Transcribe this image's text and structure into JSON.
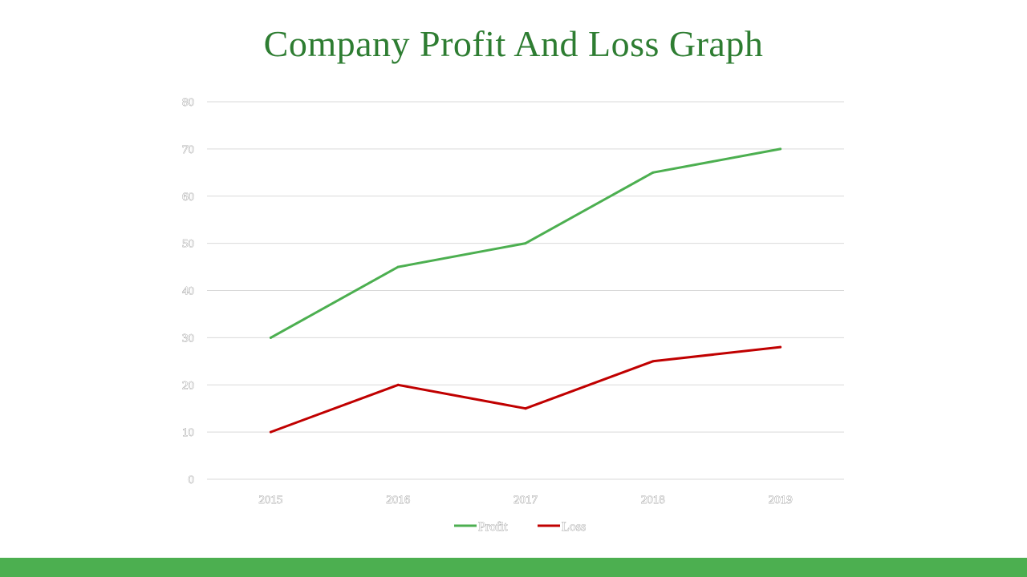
{
  "slide": {
    "title": "Company Profit And Loss Graph",
    "bottom_bar_color": "#4caf50",
    "title_color": "#2e7d32"
  },
  "chart_data": {
    "type": "line",
    "title": "Company Profit And Loss Graph",
    "xlabel": "",
    "ylabel": "",
    "categories": [
      "2015",
      "2016",
      "2017",
      "2018",
      "2019"
    ],
    "ylim": [
      0,
      80
    ],
    "yticks": [
      0,
      10,
      20,
      30,
      40,
      50,
      60,
      70,
      80
    ],
    "grid": true,
    "legend_position": "bottom",
    "series": [
      {
        "name": "Profit",
        "color": "#4caf50",
        "values": [
          30,
          45,
          50,
          65,
          70
        ]
      },
      {
        "name": "Loss",
        "color": "#c00000",
        "values": [
          10,
          20,
          15,
          25,
          28
        ]
      }
    ]
  }
}
